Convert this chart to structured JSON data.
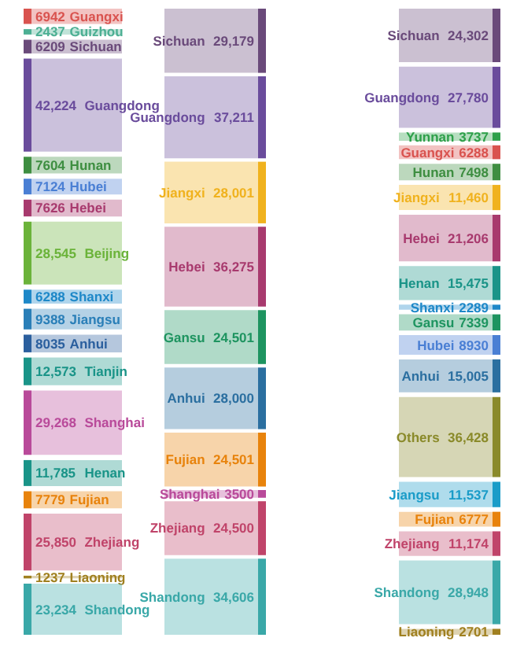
{
  "chart_data": [
    {
      "type": "other",
      "categories": [
        "Guangxi",
        "Guizhou",
        "Sichuan",
        "Guangdong",
        "Hunan",
        "Hubei",
        "Hebei",
        "Beijing",
        "Shanxi",
        "Jiangsu",
        "Anhui",
        "Tianjin",
        "Shanghai",
        "Henan",
        "Fujian",
        "Zhejiang",
        "Liaoning",
        "Shandong"
      ],
      "values": [
        6942,
        2437,
        6209,
        42224,
        7604,
        7124,
        7626,
        28545,
        6288,
        9388,
        8035,
        12573,
        29268,
        11785,
        7779,
        25850,
        1237,
        23234
      ],
      "value_labels": [
        "6942",
        "2437",
        "6209",
        "42,224",
        "7604",
        "7124",
        "7626",
        "28,545",
        "6288",
        "9388",
        "8035",
        "12,573",
        "29,268",
        "11,785",
        "7779",
        "25,850",
        "1237",
        "23,234"
      ],
      "colors": [
        "#d9534f",
        "#4caf93",
        "#6a4a7a",
        "#6a4c9c",
        "#3e8e41",
        "#4a7fd4",
        "#a83a6e",
        "#6bb33a",
        "#1e88c8",
        "#2a7fb8",
        "#2b5f9e",
        "#1a9488",
        "#b94a9a",
        "#1a9488",
        "#e8830c",
        "#c0446a",
        "#a08020",
        "#3aa8a8"
      ]
    },
    {
      "type": "other",
      "categories": [
        "Sichuan",
        "Guangdong",
        "Jiangxi",
        "Hebei",
        "Gansu",
        "Anhui",
        "Fujian",
        "Shanghai",
        "Zhejiang",
        "Shandong"
      ],
      "values": [
        29179,
        37211,
        28001,
        36275,
        24501,
        28000,
        24501,
        3500,
        24500,
        34606
      ],
      "value_labels": [
        "29,179",
        "37,211",
        "28,001",
        "36,275",
        "24,501",
        "28,000",
        "24,501",
        "3500",
        "24,500",
        "34,606"
      ],
      "colors": [
        "#6a4a7a",
        "#6a4c9c",
        "#f0b21e",
        "#a83a6e",
        "#1e9460",
        "#2b6fa0",
        "#e8830c",
        "#b94a9a",
        "#c0446a",
        "#3aa8a8"
      ]
    },
    {
      "type": "other",
      "categories": [
        "Sichuan",
        "Guangdong",
        "Yunnan",
        "Guangxi",
        "Hunan",
        "Jiangxi",
        "Hebei",
        "Henan",
        "Shanxi",
        "Gansu",
        "Hubei",
        "Anhui",
        "Others",
        "Jiangsu",
        "Fujian",
        "Zhejiang",
        "Shandong",
        "Liaoning"
      ],
      "values": [
        24302,
        27780,
        3737,
        6288,
        7498,
        11460,
        21206,
        15475,
        2289,
        7339,
        8930,
        15005,
        36428,
        11537,
        6777,
        11174,
        28948,
        2701
      ],
      "value_labels": [
        "24,302",
        "27,780",
        "3737",
        "6288",
        "7498",
        "11,460",
        "21,206",
        "15,475",
        "2289",
        "7339",
        "8930",
        "15,005",
        "36,428",
        "11,537",
        "6777",
        "11,174",
        "28,948",
        "2701"
      ],
      "colors": [
        "#6a4a7a",
        "#6a4c9c",
        "#2ea04a",
        "#d9534f",
        "#3e8e41",
        "#f0b21e",
        "#a83a6e",
        "#1a9488",
        "#1e88c8",
        "#1e9460",
        "#4a7fd4",
        "#2b6fa0",
        "#8a8a2a",
        "#1a9cc8",
        "#e8830c",
        "#c0446a",
        "#3aa8a8",
        "#a08020"
      ]
    }
  ]
}
